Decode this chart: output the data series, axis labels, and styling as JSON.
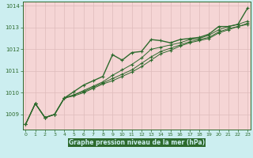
{
  "title": "Graphe pression niveau de la mer (hPa)",
  "xlim": [
    -0.3,
    23.3
  ],
  "ylim": [
    1008.3,
    1014.2
  ],
  "yticks": [
    1009,
    1010,
    1011,
    1012,
    1013,
    1014
  ],
  "xticks": [
    0,
    1,
    2,
    3,
    4,
    5,
    6,
    7,
    8,
    9,
    10,
    11,
    12,
    13,
    14,
    15,
    16,
    17,
    18,
    19,
    20,
    21,
    22,
    23
  ],
  "outer_bg": "#cceef0",
  "plot_bg": "#f5d5d5",
  "grid_color": "#ddbbbb",
  "line_color": "#2d6a2d",
  "label_bg": "#2d6a2d",
  "label_fg": "#cceef0",
  "series1": [
    1008.55,
    1009.5,
    1008.85,
    1009.0,
    1009.75,
    1010.05,
    1010.35,
    1010.55,
    1010.75,
    1011.75,
    1011.5,
    1011.85,
    1011.9,
    1012.45,
    1012.4,
    1012.3,
    1012.45,
    1012.5,
    1012.55,
    1012.7,
    1013.05,
    1013.05,
    1013.15,
    1013.9
  ],
  "series2": [
    1008.55,
    1009.5,
    1008.85,
    1009.0,
    1009.75,
    1009.9,
    1010.1,
    1010.3,
    1010.5,
    1010.8,
    1011.05,
    1011.3,
    1011.6,
    1012.0,
    1012.1,
    1012.2,
    1012.3,
    1012.45,
    1012.5,
    1012.65,
    1012.9,
    1013.05,
    1013.15,
    1013.3
  ],
  "series3": [
    1008.55,
    1009.5,
    1008.85,
    1009.0,
    1009.75,
    1009.9,
    1010.05,
    1010.25,
    1010.45,
    1010.65,
    1010.85,
    1011.05,
    1011.35,
    1011.65,
    1011.9,
    1012.05,
    1012.2,
    1012.35,
    1012.45,
    1012.55,
    1012.8,
    1012.95,
    1013.05,
    1013.2
  ],
  "series4": [
    1008.55,
    1009.5,
    1008.85,
    1009.0,
    1009.75,
    1009.85,
    1010.0,
    1010.2,
    1010.4,
    1010.55,
    1010.75,
    1010.95,
    1011.2,
    1011.5,
    1011.8,
    1011.95,
    1012.15,
    1012.3,
    1012.4,
    1012.5,
    1012.75,
    1012.9,
    1013.05,
    1013.15
  ]
}
